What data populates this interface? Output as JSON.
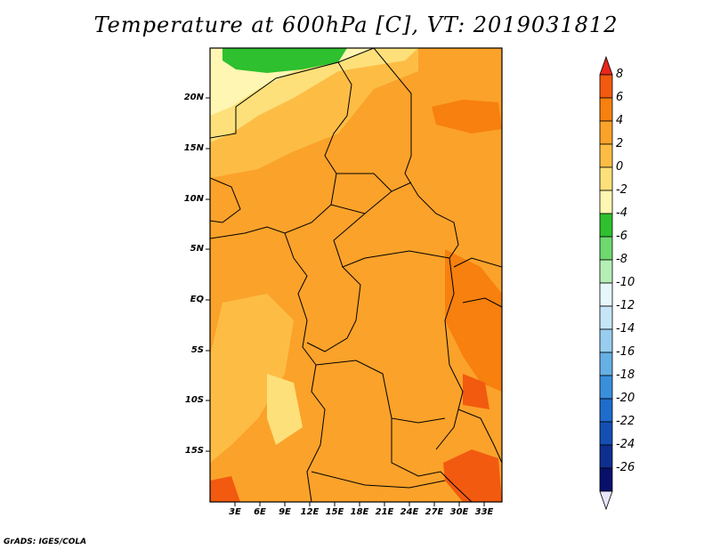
{
  "title": "Temperature at 600hPa [C], VT: 2019031812",
  "credit": "GrADS: IGES/COLA",
  "map": {
    "lat_labels": [
      "20N",
      "15N",
      "10N",
      "5N",
      "EQ",
      "5S",
      "10S",
      "15S"
    ],
    "lon_labels": [
      "3E",
      "6E",
      "9E",
      "12E",
      "15E",
      "18E",
      "21E",
      "24E",
      "27E",
      "30E",
      "33E"
    ],
    "lon_range": [
      0,
      35
    ],
    "lat_range": [
      -20,
      25
    ]
  },
  "colorbar": {
    "labels": [
      "8",
      "6",
      "4",
      "2",
      "0",
      "-2",
      "-4",
      "-6",
      "-8",
      "-10",
      "-12",
      "-14",
      "-16",
      "-18",
      "-20",
      "-22",
      "-24",
      "-26"
    ],
    "colors": [
      "#e8261a",
      "#f25a0f",
      "#f7800e",
      "#fba22a",
      "#fdbd45",
      "#fde07a",
      "#fef6b2",
      "#2ec02e",
      "#6fd86f",
      "#b6efb6",
      "#e6f8fb",
      "#c6e6f7",
      "#98cdef",
      "#66b0e5",
      "#3a8fdb",
      "#1e6ccc",
      "#154fb4",
      "#0f2f90",
      "#08106a",
      "#e8e6fb"
    ]
  }
}
